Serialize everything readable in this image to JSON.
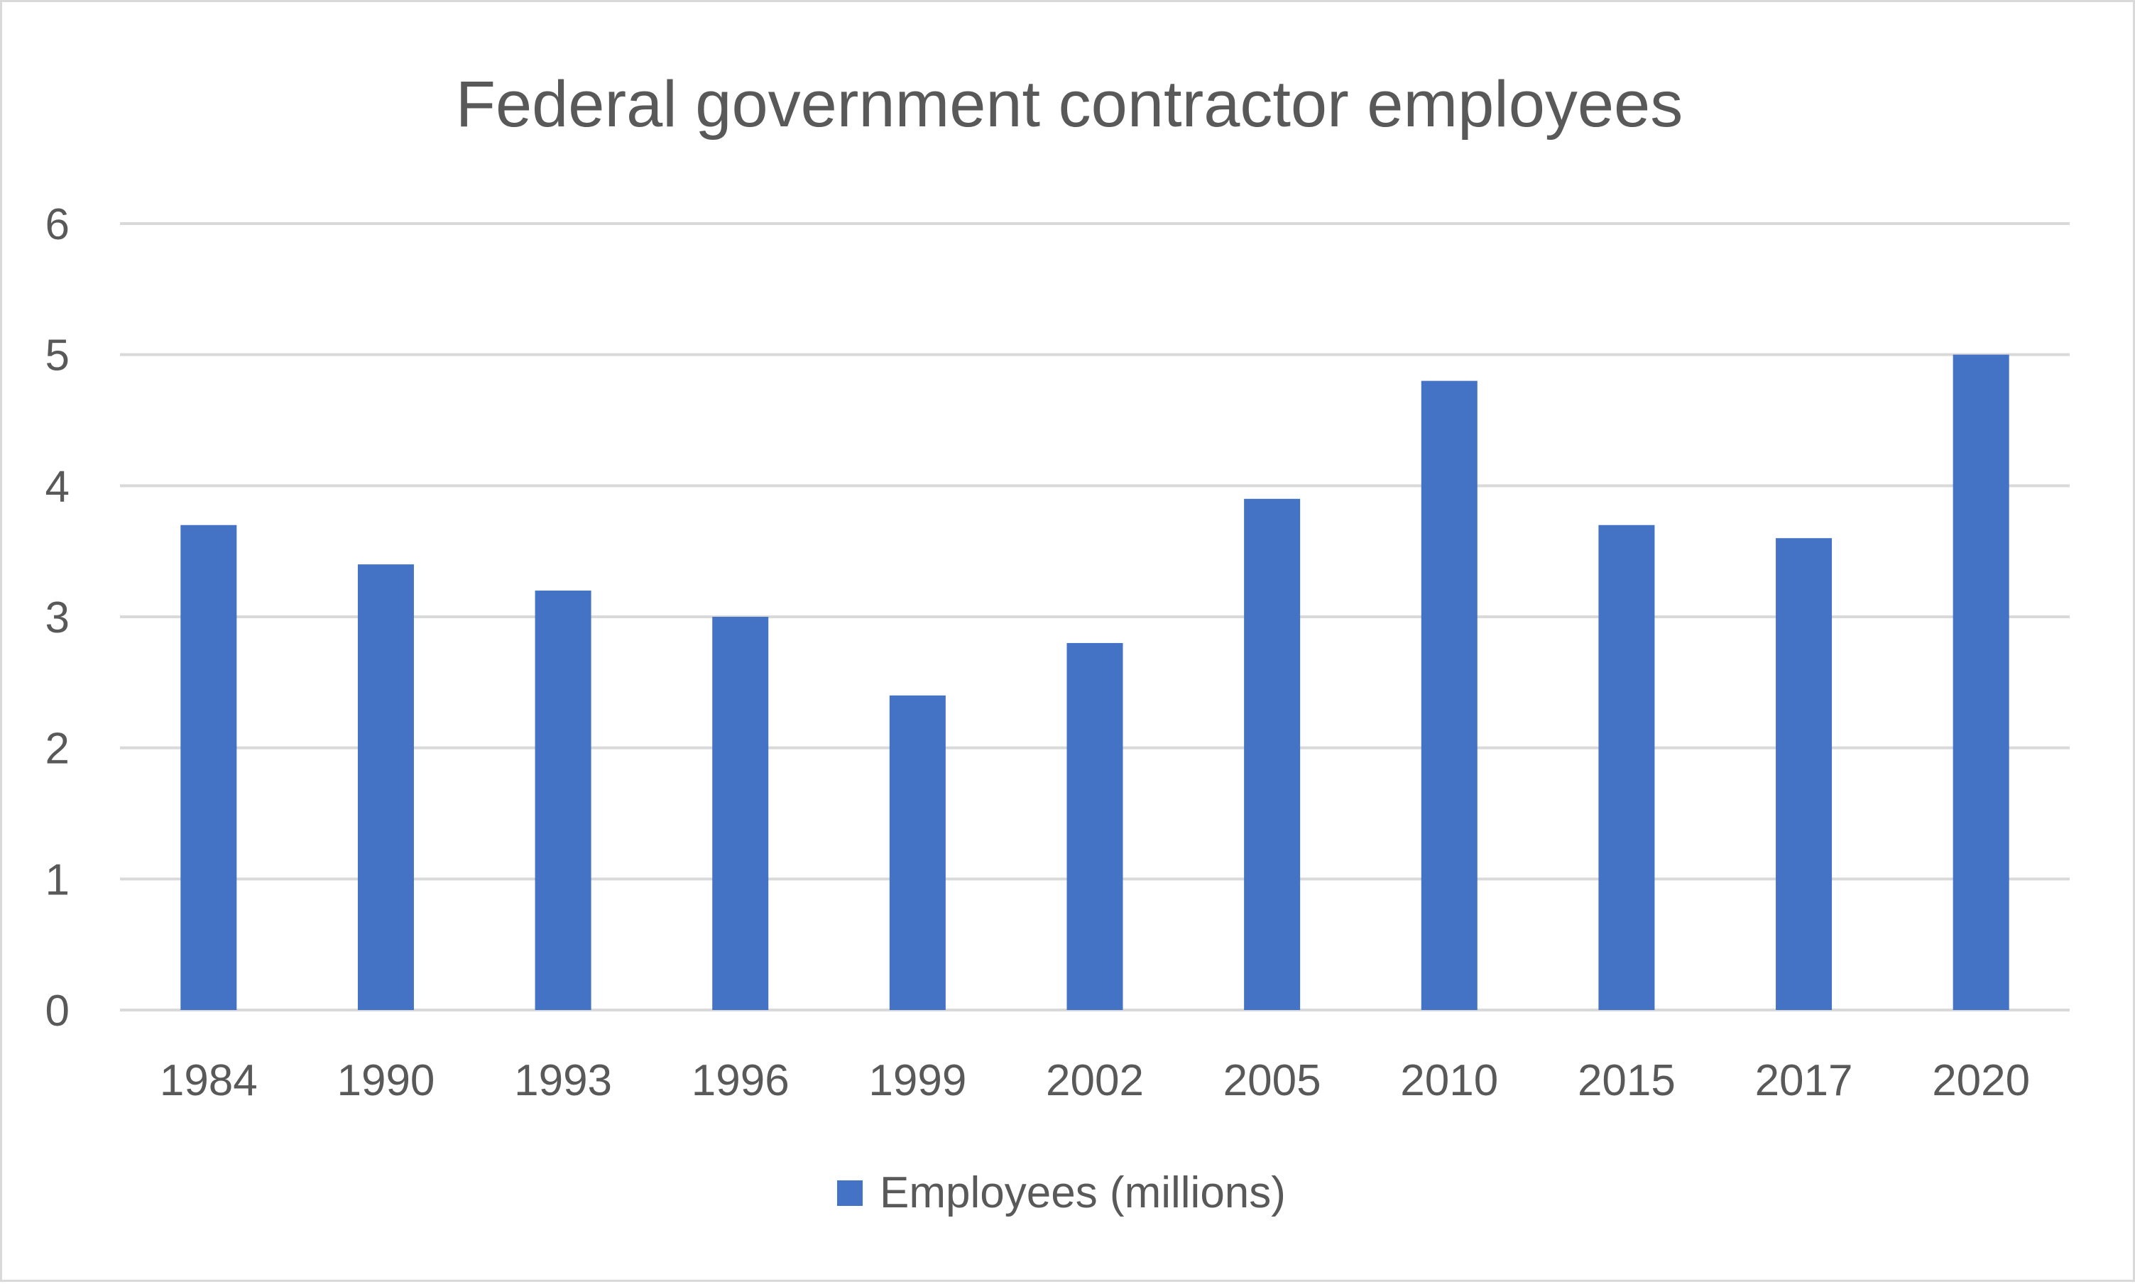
{
  "chart_data": {
    "type": "bar",
    "title": "Federal government contractor employees",
    "categories": [
      "1984",
      "1990",
      "1993",
      "1996",
      "1999",
      "2002",
      "2005",
      "2010",
      "2015",
      "2017",
      "2020"
    ],
    "series": [
      {
        "name": "Employees (millions)",
        "values": [
          3.7,
          3.4,
          3.2,
          3.0,
          2.4,
          2.8,
          3.9,
          4.8,
          3.7,
          3.6,
          5.0
        ],
        "color": "#4472c4"
      }
    ],
    "xlabel": "",
    "ylabel": "",
    "ylim": [
      0,
      6
    ],
    "yticks": [
      0,
      1,
      2,
      3,
      4,
      5,
      6
    ],
    "grid": true,
    "legend": "bottom"
  }
}
